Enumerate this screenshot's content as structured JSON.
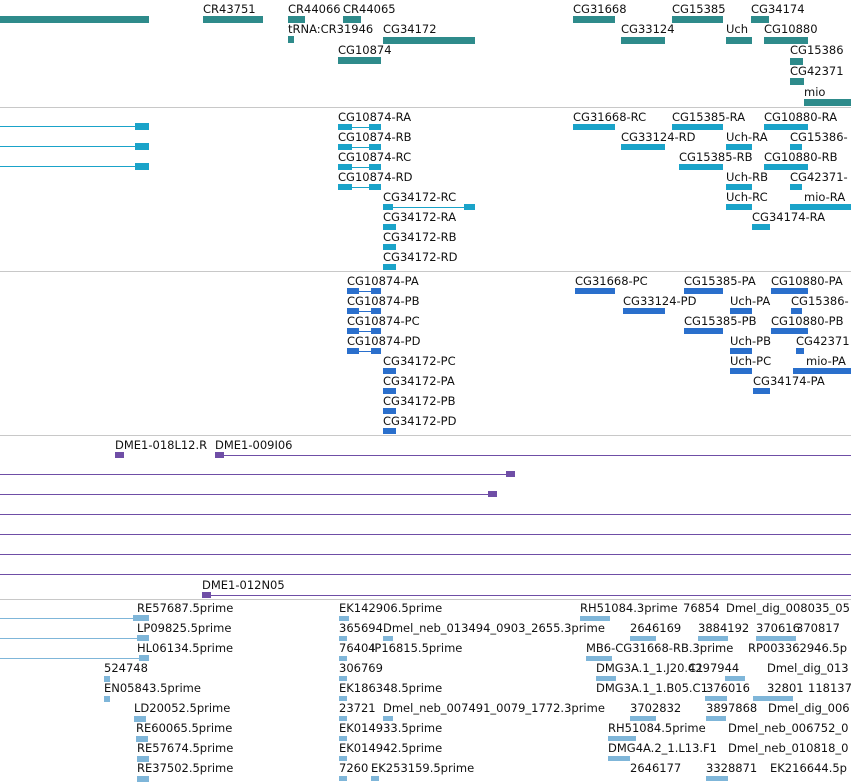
{
  "colors": {
    "gene": "#2e8b8b",
    "mrna": "#1aa3c9",
    "protein": "#2a6fcc",
    "clone": "#6f4ea6",
    "est": "#7fb6d9",
    "divider": "#c8c8c8"
  },
  "tracks": {
    "gene": {
      "labels": [
        "CR43751",
        "CR44066",
        "CR44065",
        "tRNA:CR31946",
        "CG34172",
        "CG10874",
        "CG31668",
        "CG15385",
        "CG34174",
        "CG33124",
        "Uch",
        "CG10880",
        "CG15386",
        "CG42371",
        "mio"
      ]
    },
    "mrna": {
      "labels": [
        "CG10874-RA",
        "CG10874-RB",
        "CG10874-RC",
        "CG10874-RD",
        "CG34172-RC",
        "CG34172-RA",
        "CG34172-RB",
        "CG34172-RD",
        "CG31668-RC",
        "CG15385-RA",
        "CG10880-RA",
        "CG33124-RD",
        "Uch-RA",
        "CG15386-",
        "CG15385-RB",
        "CG10880-RB",
        "Uch-RB",
        "CG42371-",
        "Uch-RC",
        "mio-RA",
        "CG34174-RA"
      ]
    },
    "protein": {
      "labels": [
        "CG10874-PA",
        "CG10874-PB",
        "CG10874-PC",
        "CG10874-PD",
        "CG34172-PC",
        "CG34172-PA",
        "CG34172-PB",
        "CG34172-PD",
        "CG31668-PC",
        "CG15385-PA",
        "CG10880-PA",
        "CG33124-PD",
        "Uch-PA",
        "CG15386-",
        "CG15385-PB",
        "CG10880-PB",
        "Uch-PB",
        "CG42371",
        "Uch-PC",
        "mio-PA",
        "CG34174-PA"
      ]
    },
    "clone": {
      "labels": [
        "DME1-018L12.R",
        "DME1-009I06",
        "DME1-012N05"
      ]
    },
    "est": {
      "labels": [
        "RE57687.5prime",
        "LP09825.5prime",
        "HL06134.5prime",
        "524748",
        "EN05843.5prime",
        "LD20052.5prime",
        "RE60065.5prime",
        "RE57674.5prime",
        "RE37502.5prime",
        "EK142906.5prime",
        "365694",
        "Dmel_neb_013494_0903_2655.3prime",
        "76404",
        "IP16815.5prime",
        "306769",
        "EK186348.5prime",
        "23721",
        "Dmel_neb_007491_0079_1772.3prime",
        "EK014933.5prime",
        "EK014942.5prime",
        "7260",
        "EK253159.5prime",
        "RH51084.3prime",
        "76854",
        "Dmel_dig_008035_05",
        "2646169",
        "3884192",
        "370616",
        "370817",
        "MB6-CG31668-RB.3prime",
        "RP003362946.5p",
        "DMG3A.1_1.J20.C1",
        "4297944",
        "Dmel_dig_013",
        "DMG3A.1_1.B05.C1",
        "376016",
        "32801",
        "118137",
        "3702832",
        "3897868",
        "Dmel_dig_006",
        "RH51084.5prime",
        "Dmel_neb_006752_0",
        "DMG4A.2_1.L13.F1",
        "Dmel_neb_010818_0",
        "2646177",
        "3328871",
        "EK216644.5p"
      ]
    }
  }
}
